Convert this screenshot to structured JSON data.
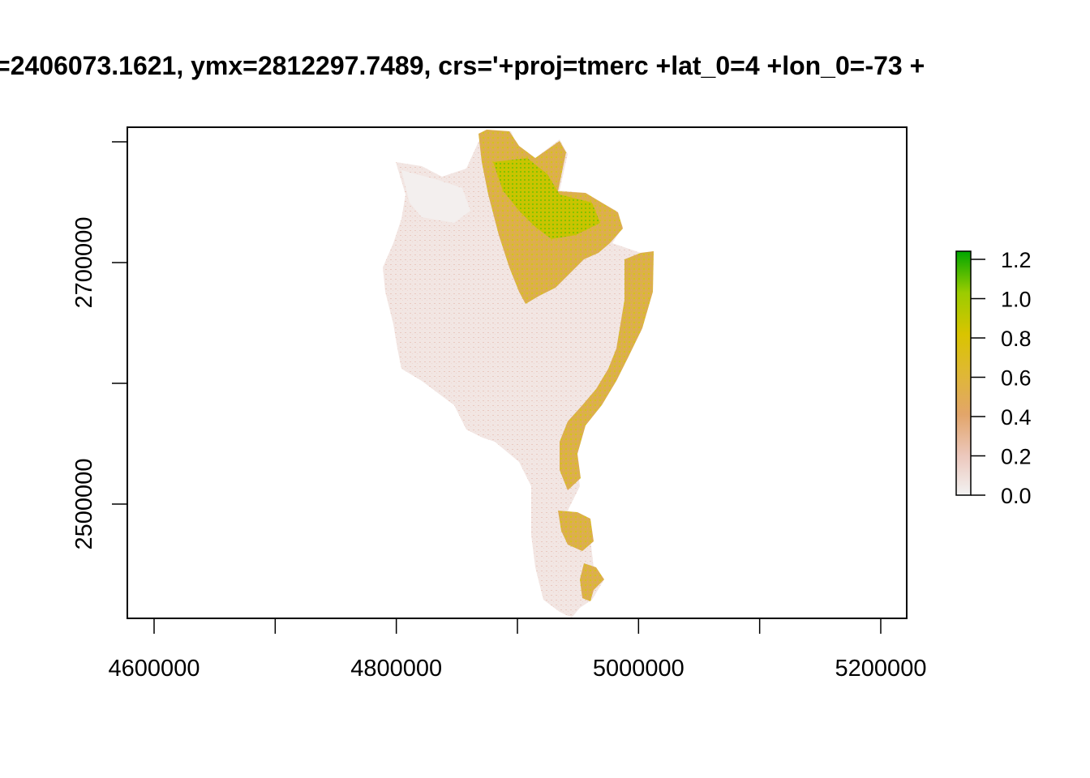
{
  "title": "=2406073.1621, ymx=2812297.7489, crs='+proj=tmerc +lat_0=4 +lon_0=-73 +",
  "map": {
    "type": "raster",
    "x_axis": {
      "ticks": [
        4600000,
        4700000,
        4800000,
        4900000,
        5000000,
        5100000,
        5200000
      ],
      "labels": [
        "4600000",
        "",
        "4800000",
        "",
        "5000000",
        "",
        "5200000"
      ]
    },
    "y_axis": {
      "ticks": [
        2500000,
        2600000,
        2700000,
        2800000
      ],
      "labels": [
        "2500000",
        "",
        "2700000",
        ""
      ]
    },
    "colors": {
      "low": "#f2f2f2",
      "mid1": "#e8c8b8",
      "mid2": "#dca860",
      "high1": "#d4c000",
      "high2": "#00a600"
    }
  },
  "legend": {
    "labels": [
      "0.0",
      "0.2",
      "0.4",
      "0.6",
      "0.8",
      "1.0",
      "1.2"
    ],
    "stops": [
      "#f2f2f2",
      "#ecc8bd",
      "#e2a56a",
      "#dfb834",
      "#d9c400",
      "#9bcc00",
      "#00a600"
    ]
  }
}
